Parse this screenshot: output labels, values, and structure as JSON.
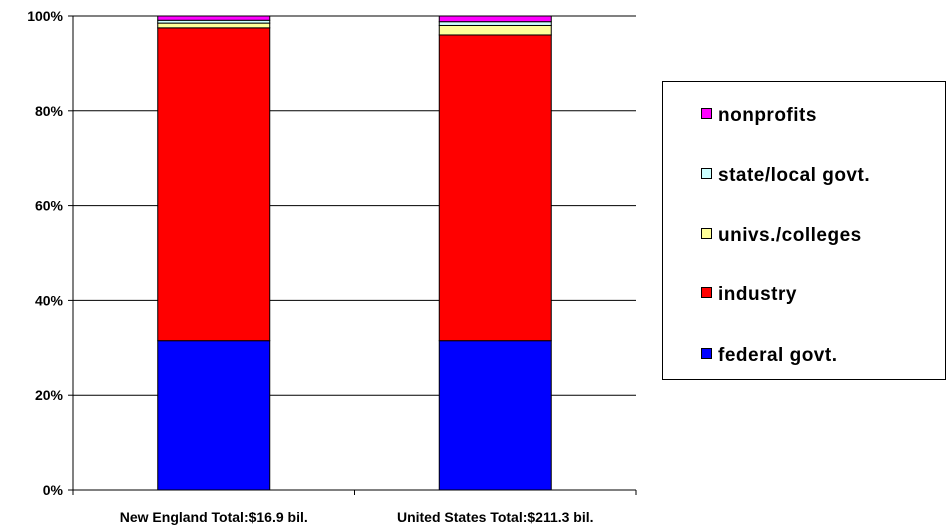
{
  "chart_data": {
    "type": "bar",
    "stacked": true,
    "categories": [
      "New England Total:$16.9 bil.",
      "United States Total:$211.3 bil."
    ],
    "series": [
      {
        "name": "federal govt.",
        "color": "#0000ff",
        "values": [
          31.5,
          31.5
        ]
      },
      {
        "name": "industry",
        "color": "#ff0000",
        "values": [
          66.0,
          64.5
        ]
      },
      {
        "name": "univs./colleges",
        "color": "#ffff99",
        "values": [
          1.0,
          2.0
        ]
      },
      {
        "name": "state/local govt.",
        "color": "#ccffff",
        "values": [
          0.6,
          0.8
        ]
      },
      {
        "name": "nonprofits",
        "color": "#ff00ff",
        "values": [
          0.9,
          1.2
        ]
      }
    ],
    "ylim": [
      0,
      100
    ],
    "yticks": [
      "0%",
      "20%",
      "40%",
      "60%",
      "80%",
      "100%"
    ],
    "ytick_values": [
      0,
      20,
      40,
      60,
      80,
      100
    ],
    "grid": true,
    "legend_position": "right",
    "legend_order": [
      "nonprofits",
      "state/local govt.",
      "univs./colleges",
      "industry",
      "federal govt."
    ]
  }
}
